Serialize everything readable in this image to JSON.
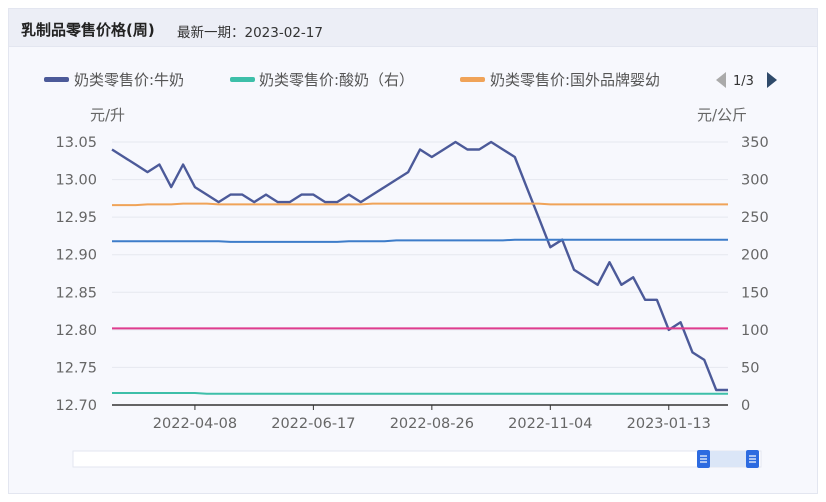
{
  "header": {
    "title": "乳制品零售价格(周)",
    "subtitle": "最新一期：2023-02-17"
  },
  "legend": {
    "items": [
      {
        "label": "奶类零售价:牛奶",
        "color": "#4c5a99"
      },
      {
        "label": "奶类零售价:酸奶（右）",
        "color": "#3dbfa9"
      },
      {
        "label": "奶类零售价:国外品牌婴幼",
        "color": "#f0a358"
      }
    ],
    "page": "1/3"
  },
  "chart_data": {
    "type": "line",
    "left_axis": {
      "unit": "元/升",
      "ticks": [
        "13.05",
        "13.00",
        "12.95",
        "12.90",
        "12.85",
        "12.80",
        "12.75",
        "12.70"
      ],
      "range": [
        12.7,
        13.05
      ]
    },
    "right_axis": {
      "unit": "元/公斤",
      "ticks": [
        "350",
        "300",
        "250",
        "200",
        "150",
        "100",
        "50",
        "0"
      ],
      "range": [
        0,
        350
      ]
    },
    "x_ticks": [
      "2022-04-08",
      "2022-06-17",
      "2022-08-26",
      "2022-11-04",
      "2023-01-13"
    ],
    "x_start": "2022-02-18",
    "x_end": "2023-02-17",
    "series": [
      {
        "name": "奶类零售价:牛奶",
        "axis": "left",
        "color": "#4c5a99",
        "values": [
          13.04,
          13.03,
          13.02,
          13.01,
          13.02,
          12.99,
          13.02,
          12.99,
          12.98,
          12.97,
          12.98,
          12.98,
          12.97,
          12.98,
          12.97,
          12.97,
          12.98,
          12.98,
          12.97,
          12.97,
          12.98,
          12.97,
          12.98,
          12.99,
          13.0,
          13.01,
          13.04,
          13.03,
          13.04,
          13.05,
          13.04,
          13.04,
          13.05,
          13.04,
          13.03,
          12.99,
          12.95,
          12.91,
          12.92,
          12.88,
          12.87,
          12.86,
          12.89,
          12.86,
          12.87,
          12.84,
          12.84,
          12.8,
          12.81,
          12.77,
          12.76,
          12.72,
          12.72
        ]
      },
      {
        "name": "奶类零售价:酸奶（右）",
        "axis": "right",
        "color": "#3dbfa9",
        "values": [
          16,
          16,
          16,
          16,
          16,
          16,
          16,
          16,
          15,
          15,
          15,
          15,
          15,
          15,
          15,
          15,
          15,
          15,
          15,
          15,
          15,
          15,
          15,
          15,
          15,
          15,
          15,
          15,
          15,
          15,
          15,
          15,
          15,
          15,
          15,
          15,
          15,
          15,
          15,
          15,
          15,
          15,
          15,
          15,
          15,
          15,
          15,
          15,
          15,
          15,
          15,
          15,
          15
        ]
      },
      {
        "name": "奶类零售价:国外品牌婴幼",
        "axis": "right",
        "color": "#f0a358",
        "values": [
          266,
          266,
          266,
          267,
          267,
          267,
          268,
          268,
          268,
          267,
          267,
          267,
          267,
          267,
          267,
          267,
          267,
          267,
          267,
          267,
          267,
          267,
          268,
          268,
          268,
          268,
          268,
          268,
          268,
          268,
          268,
          268,
          268,
          268,
          268,
          268,
          268,
          267,
          267,
          267,
          267,
          267,
          267,
          267,
          267,
          267,
          267,
          267,
          267,
          267,
          267,
          267,
          267
        ]
      },
      {
        "name": "",
        "axis": "right",
        "color": "#3d7cc9",
        "values": [
          218,
          218,
          218,
          218,
          218,
          218,
          218,
          218,
          218,
          218,
          217,
          217,
          217,
          217,
          217,
          217,
          217,
          217,
          217,
          217,
          218,
          218,
          218,
          218,
          219,
          219,
          219,
          219,
          219,
          219,
          219,
          219,
          219,
          219,
          220,
          220,
          220,
          220,
          220,
          220,
          220,
          220,
          220,
          220,
          220,
          220,
          220,
          220,
          220,
          220,
          220,
          220,
          220
        ]
      },
      {
        "name": "",
        "axis": "right",
        "color": "#df3c8e",
        "values": [
          102,
          102,
          102,
          102,
          102,
          102,
          102,
          102,
          102,
          102,
          102,
          102,
          102,
          102,
          102,
          102,
          102,
          102,
          102,
          102,
          102,
          102,
          102,
          102,
          102,
          102,
          102,
          102,
          102,
          102,
          102,
          102,
          102,
          102,
          102,
          102,
          102,
          102,
          102,
          102,
          102,
          102,
          102,
          102,
          102,
          102,
          102,
          102,
          102,
          102,
          102,
          102,
          102
        ]
      }
    ]
  }
}
